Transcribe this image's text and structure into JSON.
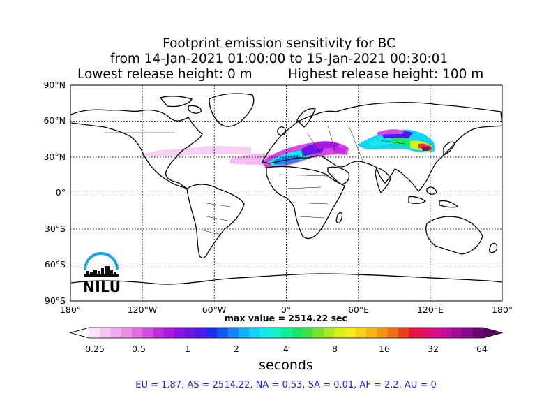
{
  "title": {
    "line1": "Footprint emission sensitivity for BC",
    "line2": "from 14-Jan-2021 01:00:00 to 15-Jan-2021 00:30:01",
    "line3_left": "Lowest release height: 0 m",
    "line3_right": "Highest release height: 100 m"
  },
  "lat_labels": [
    "90°N",
    "60°N",
    "30°N",
    "0°",
    "30°S",
    "60°S",
    "90°S"
  ],
  "lon_labels": [
    "180°",
    "120°W",
    "60°W",
    "0°",
    "60°E",
    "120°E",
    "180°"
  ],
  "max_value": "max value = 2514.22 sec",
  "colorbar": {
    "ticks": [
      "0.25",
      "0.5",
      "1",
      "2",
      "4",
      "8",
      "16",
      "32",
      "64"
    ],
    "units": "seconds",
    "colors": [
      "#fde0fa",
      "#f8c6f4",
      "#f3a9ef",
      "#ed8be9",
      "#e26be3",
      "#d24adf",
      "#c12bdc",
      "#a818e0",
      "#8a12e6",
      "#6a14ec",
      "#4a1cef",
      "#1f2cf0",
      "#1256f5",
      "#1286f8",
      "#12b0fa",
      "#12d4f8",
      "#12eaea",
      "#12f2c8",
      "#12ee98",
      "#16e56a",
      "#3ee040",
      "#7ae22a",
      "#acea20",
      "#d8f01c",
      "#f4ee18",
      "#f8d414",
      "#f8b612",
      "#f49410",
      "#ef6e12",
      "#ec3e1c",
      "#ea1040",
      "#e40e62",
      "#d80c86",
      "#c20a9e",
      "#a40a9a",
      "#88088a",
      "#6c0470"
    ]
  },
  "region_stats": "EU = 1.87,  AS = 2514.22,  NA = 0.53,  SA = 0.01,  AF = 2.2,  AU = 0",
  "logo": {
    "text": "NILU",
    "arc_color": "#1aa7e2"
  },
  "map": {
    "lon_range": [
      -180,
      180
    ],
    "lat_range": [
      -90,
      90
    ],
    "gridline_step_deg": 30,
    "projection": "equirectangular"
  }
}
